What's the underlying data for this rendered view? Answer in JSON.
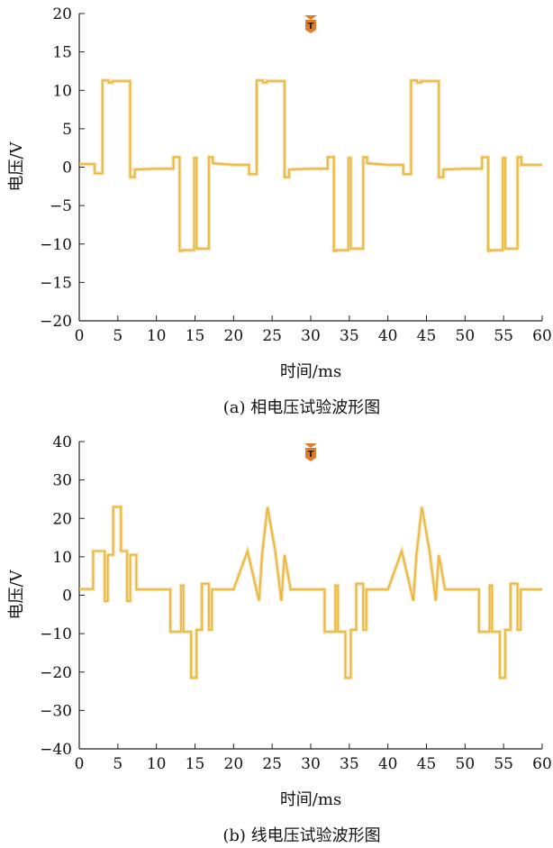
{
  "colors": {
    "trace": "#e8b53a",
    "marker": "#e07b2a",
    "axis": "#222222"
  },
  "chart_data": [
    {
      "type": "line",
      "caption": "(a) 相电压试验波形图",
      "xlabel": "时间/ms",
      "ylabel": "电压/V",
      "xlim": [
        0,
        60
      ],
      "ylim": [
        -20,
        20
      ],
      "x_ticks": [
        0,
        5,
        10,
        15,
        20,
        25,
        30,
        35,
        40,
        45,
        50,
        55,
        60
      ],
      "y_ticks": [
        -20,
        -15,
        -10,
        -5,
        0,
        5,
        10,
        15,
        20
      ],
      "grid": false,
      "trigger_marker": {
        "label": "T",
        "x": 30
      },
      "series": [
        {
          "x": [
            0,
            2,
            2,
            3,
            3,
            3.8,
            3.8,
            4.3,
            4.3,
            6.6,
            6.6,
            7.2,
            7.2,
            10,
            12.2,
            12.2,
            13,
            13,
            13.3,
            13.3,
            14.9,
            14.9,
            15.2,
            15.2,
            16.8,
            16.8,
            17.3,
            17.3,
            20,
            22,
            22,
            23,
            23,
            23.8,
            23.8,
            24.3,
            24.3,
            26.6,
            26.6,
            27.2,
            27.2,
            30,
            32.2,
            32.2,
            33,
            33,
            33.3,
            33.3,
            34.9,
            34.9,
            35.2,
            35.2,
            36.8,
            36.8,
            37.3,
            37.3,
            40,
            42,
            42,
            43,
            43,
            43.8,
            43.8,
            44.3,
            44.3,
            46.6,
            46.6,
            47.2,
            47.2,
            50,
            52.2,
            52.2,
            53,
            53,
            53.3,
            53.3,
            54.9,
            54.9,
            55.2,
            55.2,
            56.8,
            56.8,
            57.3,
            57.3,
            60
          ],
          "y": [
            0.4,
            0.4,
            -0.8,
            -0.8,
            11.3,
            11.3,
            11,
            11,
            11.2,
            11.2,
            -1.3,
            -1.3,
            -0.3,
            -0.2,
            -0.2,
            1.3,
            1.3,
            -10.9,
            -10.9,
            -10.8,
            -10.8,
            1.2,
            1.2,
            -10.6,
            -10.6,
            1.3,
            1.3,
            0.5,
            0.3,
            0.3,
            -0.9,
            -0.9,
            11.3,
            11.3,
            11,
            11,
            11.2,
            11.2,
            -1.3,
            -1.3,
            -0.3,
            -0.2,
            -0.2,
            1.3,
            1.3,
            -10.9,
            -10.9,
            -10.8,
            -10.8,
            1.2,
            1.2,
            -10.6,
            -10.6,
            1.3,
            1.3,
            0.5,
            0.3,
            0.3,
            -0.9,
            -0.9,
            11.3,
            11.3,
            11,
            11,
            11.2,
            11.2,
            -1.3,
            -1.3,
            -0.3,
            -0.2,
            -0.2,
            1.3,
            1.3,
            -10.9,
            -10.9,
            -10.8,
            -10.8,
            1.2,
            1.2,
            -10.6,
            -10.6,
            1.3,
            1.3,
            0.3,
            0.3
          ]
        }
      ]
    },
    {
      "type": "line",
      "caption": "(b) 线电压试验波形图",
      "xlabel": "时间/ms",
      "ylabel": "电压/V",
      "xlim": [
        0,
        60
      ],
      "ylim": [
        -40,
        40
      ],
      "x_ticks": [
        0,
        5,
        10,
        15,
        20,
        25,
        30,
        35,
        40,
        45,
        50,
        55,
        60
      ],
      "y_ticks": [
        -40,
        -30,
        -20,
        -10,
        0,
        10,
        20,
        30,
        40
      ],
      "grid": false,
      "trigger_marker": {
        "label": "T",
        "x": 30
      },
      "series": [
        {
          "x": [
            0,
            1.8,
            1.8,
            3.3,
            3.3,
            3.7,
            3.7,
            4.4,
            4.4,
            5.4,
            5.4,
            6.2,
            6.2,
            6.6,
            6.6,
            7.4,
            7.4,
            8.5,
            11.8,
            11.8,
            13.2,
            13.2,
            13.5,
            13.5,
            14.5,
            14.5,
            15.2,
            15.2,
            15.9,
            15.9,
            16.8,
            16.8,
            17.2,
            17.2,
            18.3,
            18.3,
            20,
            21.8,
            21.8,
            23.3,
            23.3,
            23.7,
            23.7,
            24.4,
            24.4,
            25.4,
            25.4,
            26.2,
            26.2,
            26.6,
            26.6,
            27.4,
            27.4,
            28.5,
            31.8,
            31.8,
            33.2,
            33.2,
            33.5,
            33.5,
            34.5,
            34.5,
            35.2,
            35.2,
            35.9,
            35.9,
            36.8,
            36.8,
            37.2,
            37.2,
            38.3,
            38.3,
            40,
            41.8,
            41.8,
            43.3,
            43.3,
            43.7,
            43.7,
            44.4,
            44.4,
            45.4,
            45.4,
            46.2,
            46.2,
            46.6,
            46.6,
            47.4,
            47.4,
            48.5,
            51.8,
            51.8,
            53.2,
            53.2,
            53.5,
            53.5,
            54.5,
            54.5,
            55.2,
            55.2,
            55.9,
            55.9,
            56.8,
            56.8,
            57.2,
            57.2,
            58.3,
            58.3,
            60
          ],
          "y": [
            1.6,
            1.6,
            11.5,
            11.5,
            -1.5,
            -1.5,
            10.5,
            10.5,
            23,
            23,
            11.5,
            11.5,
            -1.5,
            -1.5,
            10.5,
            10.5,
            1.5,
            1.5,
            1.5,
            -9.5,
            -9.5,
            2.5,
            2.5,
            -9.5,
            -9.5,
            -21.5,
            -21.5,
            -9,
            -9,
            3,
            3,
            -9,
            -9,
            1.5,
            1.5,
            1.5,
            1.5,
            11.5,
            11.5,
            -1.5,
            -1.5,
            10.5,
            10.5,
            23,
            23,
            11.5,
            11.5,
            -1.5,
            -1.5,
            10.5,
            10.5,
            1.5,
            1.5,
            1.5,
            1.5,
            -9.5,
            -9.5,
            2.5,
            2.5,
            -9.5,
            -9.5,
            -21.5,
            -21.5,
            -9,
            -9,
            3,
            3,
            -9,
            -9,
            1.5,
            1.5,
            1.5,
            1.5,
            11.5,
            11.5,
            -1.5,
            -1.5,
            10.5,
            10.5,
            23,
            23,
            11.5,
            11.5,
            -1.5,
            -1.5,
            10.5,
            10.5,
            1.5,
            1.5,
            1.5,
            1.5,
            -9.5,
            -9.5,
            2.5,
            2.5,
            -9.5,
            -9.5,
            -21.5,
            -21.5,
            -9,
            -9,
            3,
            3,
            -9,
            -9,
            1.5,
            1.5,
            1.5,
            1.5
          ]
        }
      ]
    }
  ]
}
